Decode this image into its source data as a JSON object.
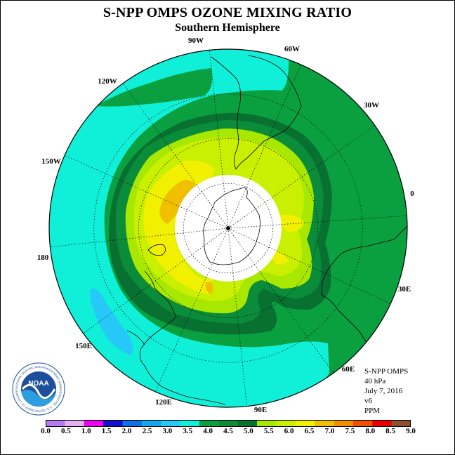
{
  "title": "S-NPP OMPS OZONE MIXING RATIO",
  "subtitle": "Southern Hemisphere",
  "longitude_labels": [
    "0",
    "30E",
    "60E",
    "90E",
    "120E",
    "150E",
    "180",
    "150W",
    "120W",
    "90W",
    "60W",
    "30W"
  ],
  "info": {
    "instrument": "S-NPP OMPS",
    "pressure": "40 hPa",
    "date": "July 7, 2016",
    "version": "v6",
    "units": "PPM"
  },
  "logo": {
    "text": "NOAA",
    "ring_text": "NATIONAL OCEANIC AND ATMOSPHERIC ADMINISTRATION · U.S. DEPARTMENT OF COMMERCE"
  },
  "colorbar": {
    "ticks": [
      "0.0",
      "0.5",
      "1.0",
      "1.5",
      "2.0",
      "2.5",
      "3.0",
      "3.5",
      "4.0",
      "4.5",
      "5.0",
      "5.5",
      "6.0",
      "6.5",
      "7.0",
      "7.5",
      "8.0",
      "8.5",
      "9.0"
    ],
    "colors": [
      "#b47cf0",
      "#e3b0f0",
      "#f000f0",
      "#1010d0",
      "#1070e8",
      "#12a8f0",
      "#26c8f8",
      "#10f0d8",
      "#0aa040",
      "#0a8c3a",
      "#087030",
      "#a8e800",
      "#c8f000",
      "#f0f000",
      "#f0c000",
      "#f09000",
      "#f05000",
      "#e80000",
      "#8c5030"
    ]
  },
  "map": {
    "zones": [
      {
        "name": "3.5-4.0",
        "color": "#10f0d8"
      },
      {
        "name": "3.0-3.5",
        "color": "#26c8f8"
      },
      {
        "name": "4.0-4.5",
        "color": "#0aa040"
      },
      {
        "name": "4.5-5.0",
        "color": "#0a8c3a"
      },
      {
        "name": "5.0-5.5",
        "color": "#087030"
      },
      {
        "name": "5.5-6.0",
        "color": "#a8e800"
      },
      {
        "name": "6.0-6.5",
        "color": "#c8f000"
      },
      {
        "name": "6.5-7.0",
        "color": "#f0f000"
      },
      {
        "name": "7.0-7.5",
        "color": "#f0c000"
      },
      {
        "name": "7.5-8.0",
        "color": "#f09000"
      }
    ]
  }
}
